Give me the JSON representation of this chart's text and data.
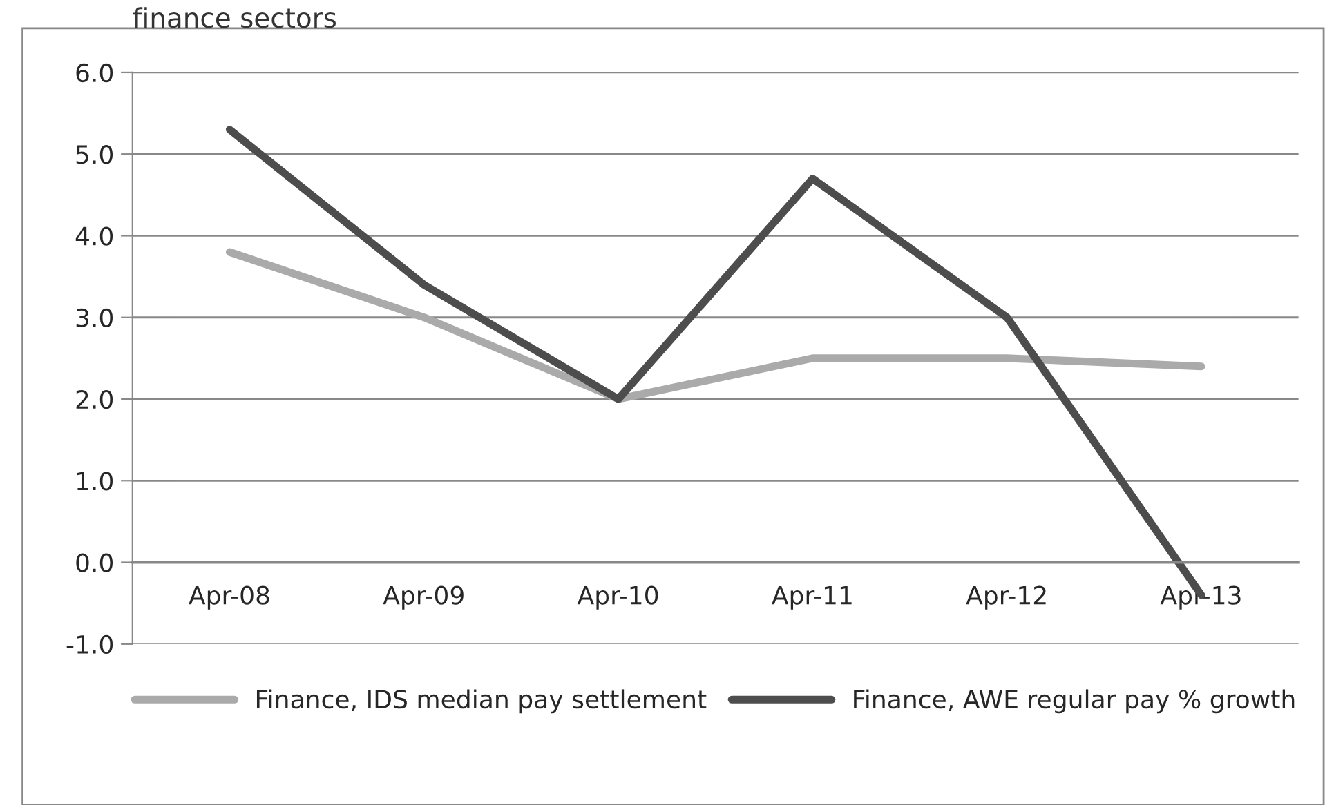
{
  "chart_data": {
    "type": "line",
    "title": "finance sectors",
    "categories": [
      "Apr-08",
      "Apr-09",
      "Apr-10",
      "Apr-11",
      "Apr-12",
      "Apr-13"
    ],
    "series": [
      {
        "name": "Finance, IDS median pay settlement",
        "color": "#aaaaaa",
        "values": [
          3.8,
          3.0,
          2.0,
          2.5,
          2.5,
          2.4
        ]
      },
      {
        "name": "Finance, AWE regular pay % growth",
        "color": "#4d4d4d",
        "values": [
          5.3,
          3.4,
          2.0,
          4.7,
          3.0,
          -0.4
        ]
      }
    ],
    "ylim": [
      -1.0,
      6.0
    ],
    "yticks": [
      {
        "value": -1.0,
        "label": "-1.0"
      },
      {
        "value": 0.0,
        "label": "0.0"
      },
      {
        "value": 1.0,
        "label": "1.0"
      },
      {
        "value": 2.0,
        "label": "2.0"
      },
      {
        "value": 3.0,
        "label": "3.0"
      },
      {
        "value": 4.0,
        "label": "4.0"
      },
      {
        "value": 5.0,
        "label": "5.0"
      },
      {
        "value": 6.0,
        "label": "6.0"
      }
    ],
    "grid": "y",
    "legend": "bottom",
    "marker": "none",
    "line_style": "solid"
  }
}
